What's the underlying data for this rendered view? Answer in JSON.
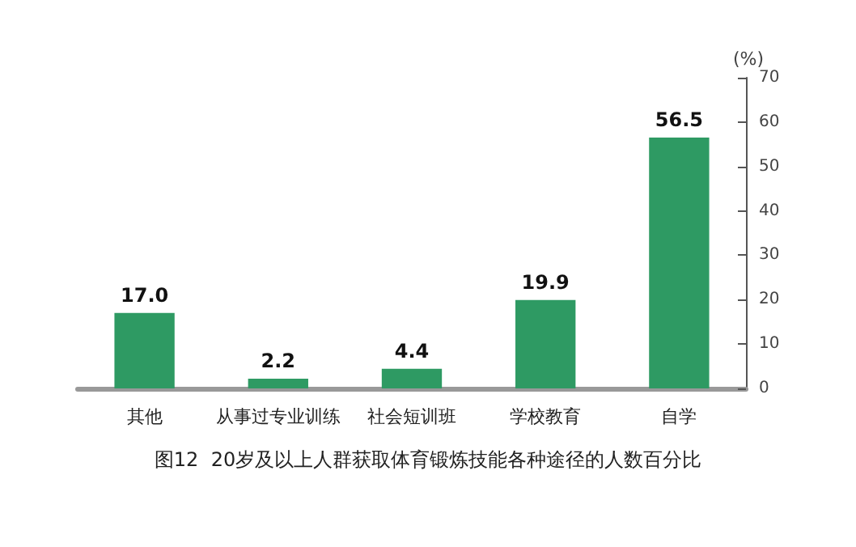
{
  "chart_data": {
    "type": "bar",
    "ylabel": "(%)",
    "categories": [
      "其他",
      "从事过专业训练",
      "社会短训班",
      "学校教育",
      "自学"
    ],
    "values": [
      17.0,
      2.2,
      4.4,
      19.9,
      56.5
    ],
    "value_labels": [
      "17.0",
      "2.2",
      "4.4",
      "19.9",
      "56.5"
    ],
    "color": "#2e9a63",
    "ylim": [
      0,
      70
    ],
    "yticks": [
      0,
      10,
      20,
      30,
      40,
      50,
      60,
      70
    ],
    "grid": false,
    "annotations": [
      "图12  20岁及以上人群获取体育锻炼技能各种途径的人数百分比"
    ]
  }
}
